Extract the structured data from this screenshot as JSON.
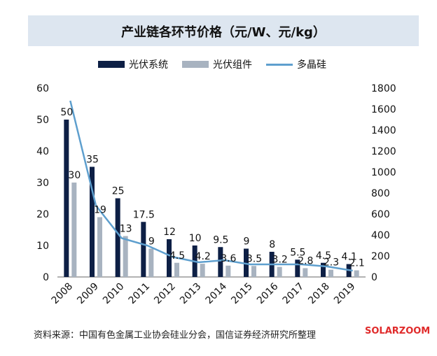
{
  "title": "产业链各环节价格（元/W、元/kg）",
  "source": "资料来源：中国有色金属工业协会硅业分会，国信证券经济研究所整理",
  "logo": "SOLARZOOM",
  "colors": {
    "system": "#0d1f45",
    "module": "#a8b3c0",
    "polysilicon": "#5e9fce",
    "title_bg": "#dde6f0"
  },
  "chart_data": {
    "type": "bar",
    "categories": [
      "2008",
      "2009",
      "2010",
      "2011",
      "2012",
      "2013",
      "2014",
      "2015",
      "2016",
      "2017",
      "2018",
      "2019"
    ],
    "series": [
      {
        "name": "光伏系统",
        "type": "bar",
        "axis": "left",
        "values": [
          50,
          35,
          25,
          17.5,
          12,
          10,
          9.5,
          9,
          8,
          5.5,
          4.5,
          4.1
        ],
        "labels": [
          "50",
          "35",
          "25",
          "17.5",
          "12",
          "10",
          "9.5",
          "9",
          "8",
          "5.5",
          "4.5",
          "4.1"
        ]
      },
      {
        "name": "光伏组件",
        "type": "bar",
        "axis": "left",
        "values": [
          30,
          19,
          13,
          9,
          4.5,
          4.2,
          3.6,
          3.5,
          3.2,
          2.8,
          2.3,
          2.1
        ],
        "labels": [
          "30",
          "19",
          "13",
          "9",
          "4.5",
          "4.2",
          "3.6",
          "3.5",
          "3.2",
          "2.8",
          "2.3",
          "2.1"
        ]
      },
      {
        "name": "多晶硅",
        "type": "line",
        "axis": "right",
        "values": [
          1680,
          680,
          370,
          300,
          190,
          140,
          160,
          120,
          120,
          120,
          100,
          60
        ]
      }
    ],
    "y_left": {
      "lim": [
        0,
        60
      ],
      "ticks": [
        "0",
        "10",
        "20",
        "30",
        "40",
        "50",
        "60"
      ]
    },
    "y_right": {
      "lim": [
        0,
        1800
      ],
      "ticks": [
        "0",
        "200",
        "400",
        "600",
        "800",
        "1000",
        "1200",
        "1400",
        "1600",
        "1800"
      ]
    },
    "grid": false,
    "legend_position": "top"
  }
}
